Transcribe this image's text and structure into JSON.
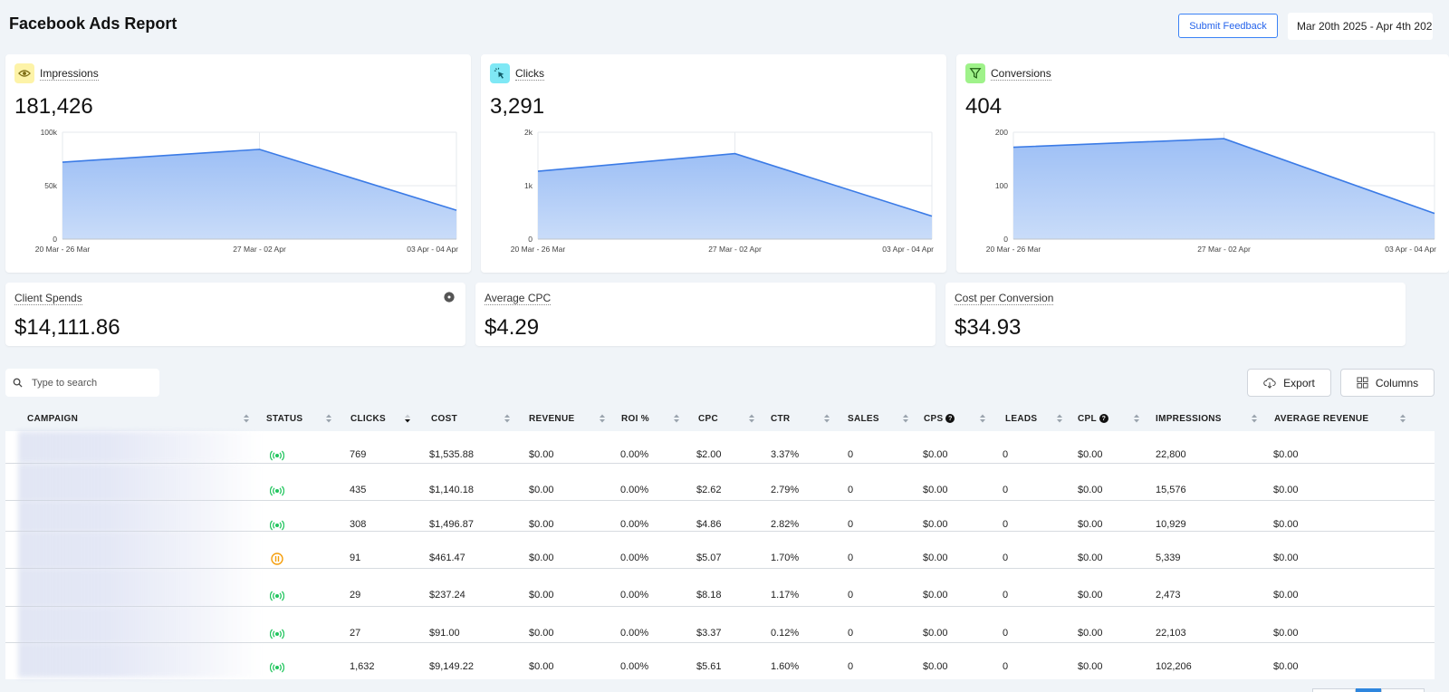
{
  "header": {
    "title": "Facebook Ads Report",
    "feedback_label": "Submit Feedback",
    "date_range": "Mar 20th 2025 - Apr 4th 202"
  },
  "metrics": [
    {
      "id": "impressions",
      "label": "Impressions",
      "value": "181,426",
      "icon": "eye-icon",
      "icon_bg": "#fdf3a8",
      "icon_color": "#7a6a10",
      "chart_data": {
        "type": "area",
        "categories": [
          "20 Mar - 26 Mar",
          "27 Mar - 02 Apr",
          "03 Apr - 04 Apr"
        ],
        "values": [
          72000,
          84000,
          27000
        ],
        "yticks": [
          "100k",
          "50k",
          "0"
        ],
        "ylim": [
          0,
          100000
        ]
      }
    },
    {
      "id": "clicks",
      "label": "Clicks",
      "value": "3,291",
      "icon": "cursor-click-icon",
      "icon_bg": "#7fe8f5",
      "icon_color": "#0f5a66",
      "chart_data": {
        "type": "area",
        "categories": [
          "20 Mar - 26 Mar",
          "27 Mar - 02 Apr",
          "03 Apr - 04 Apr"
        ],
        "values": [
          1270,
          1600,
          430
        ],
        "yticks": [
          "2k",
          "1k",
          "0"
        ],
        "ylim": [
          0,
          2000
        ]
      }
    },
    {
      "id": "conversions",
      "label": "Conversions",
      "value": "404",
      "icon": "funnel-icon",
      "icon_bg": "#9ff28a",
      "icon_color": "#1f5e12",
      "chart_data": {
        "type": "area",
        "categories": [
          "20 Mar - 26 Mar",
          "27 Mar - 02 Apr",
          "03 Apr - 04 Apr"
        ],
        "values": [
          172,
          188,
          48
        ],
        "yticks": [
          "200",
          "100",
          "0"
        ],
        "ylim": [
          0,
          200
        ]
      }
    }
  ],
  "stats": [
    {
      "id": "client-spends",
      "label": "Client Spends",
      "value": "$14,111.86",
      "has_gear": true
    },
    {
      "id": "average-cpc",
      "label": "Average CPC",
      "value": "$4.29",
      "has_gear": false
    },
    {
      "id": "cost-per-conversion",
      "label": "Cost per Conversion",
      "value": "$34.93",
      "has_gear": false
    }
  ],
  "search": {
    "placeholder": "Type to search"
  },
  "toolbar": {
    "export_label": "Export",
    "columns_label": "Columns"
  },
  "table": {
    "columns": [
      {
        "key": "campaign",
        "label": "CAMPAIGN",
        "help": false
      },
      {
        "key": "status",
        "label": "STATUS",
        "help": false
      },
      {
        "key": "clicks",
        "label": "CLICKS",
        "help": false,
        "sorted": "desc"
      },
      {
        "key": "cost",
        "label": "COST",
        "help": false
      },
      {
        "key": "revenue",
        "label": "REVENUE",
        "help": false
      },
      {
        "key": "roi",
        "label": "ROI %",
        "help": false
      },
      {
        "key": "cpc",
        "label": "CPC",
        "help": false
      },
      {
        "key": "ctr",
        "label": "CTR",
        "help": false
      },
      {
        "key": "sales",
        "label": "SALES",
        "help": false
      },
      {
        "key": "cps",
        "label": "CPS",
        "help": true
      },
      {
        "key": "leads",
        "label": "LEADS",
        "help": false
      },
      {
        "key": "cpl",
        "label": "CPL",
        "help": true
      },
      {
        "key": "impressions",
        "label": "IMPRESSIONS",
        "help": false
      },
      {
        "key": "avg_revenue",
        "label": "AVERAGE REVENUE",
        "help": false
      }
    ],
    "rows": [
      {
        "status": "active",
        "clicks": "769",
        "cost": "$1,535.88",
        "revenue": "$0.00",
        "roi": "0.00%",
        "cpc": "$2.00",
        "ctr": "3.37%",
        "sales": "0",
        "cps": "$0.00",
        "leads": "0",
        "cpl": "$0.00",
        "impressions": "22,800",
        "avg_revenue": "$0.00"
      },
      {
        "status": "active",
        "clicks": "435",
        "cost": "$1,140.18",
        "revenue": "$0.00",
        "roi": "0.00%",
        "cpc": "$2.62",
        "ctr": "2.79%",
        "sales": "0",
        "cps": "$0.00",
        "leads": "0",
        "cpl": "$0.00",
        "impressions": "15,576",
        "avg_revenue": "$0.00"
      },
      {
        "status": "active",
        "clicks": "308",
        "cost": "$1,496.87",
        "revenue": "$0.00",
        "roi": "0.00%",
        "cpc": "$4.86",
        "ctr": "2.82%",
        "sales": "0",
        "cps": "$0.00",
        "leads": "0",
        "cpl": "$0.00",
        "impressions": "10,929",
        "avg_revenue": "$0.00"
      },
      {
        "status": "paused",
        "clicks": "91",
        "cost": "$461.47",
        "revenue": "$0.00",
        "roi": "0.00%",
        "cpc": "$5.07",
        "ctr": "1.70%",
        "sales": "0",
        "cps": "$0.00",
        "leads": "0",
        "cpl": "$0.00",
        "impressions": "5,339",
        "avg_revenue": "$0.00"
      },
      {
        "status": "active",
        "clicks": "29",
        "cost": "$237.24",
        "revenue": "$0.00",
        "roi": "0.00%",
        "cpc": "$8.18",
        "ctr": "1.17%",
        "sales": "0",
        "cps": "$0.00",
        "leads": "0",
        "cpl": "$0.00",
        "impressions": "2,473",
        "avg_revenue": "$0.00"
      },
      {
        "status": "active",
        "clicks": "27",
        "cost": "$91.00",
        "revenue": "$0.00",
        "roi": "0.00%",
        "cpc": "$3.37",
        "ctr": "0.12%",
        "sales": "0",
        "cps": "$0.00",
        "leads": "0",
        "cpl": "$0.00",
        "impressions": "22,103",
        "avg_revenue": "$0.00"
      },
      {
        "status": "active",
        "clicks": "1,632",
        "cost": "$9,149.22",
        "revenue": "$0.00",
        "roi": "0.00%",
        "cpc": "$5.61",
        "ctr": "1.60%",
        "sales": "0",
        "cps": "$0.00",
        "leads": "0",
        "cpl": "$0.00",
        "impressions": "102,206",
        "avg_revenue": "$0.00"
      }
    ]
  },
  "colors": {
    "accent": "#3b82f6",
    "active_status": "#22c55e",
    "paused_status": "#f59e0b"
  }
}
